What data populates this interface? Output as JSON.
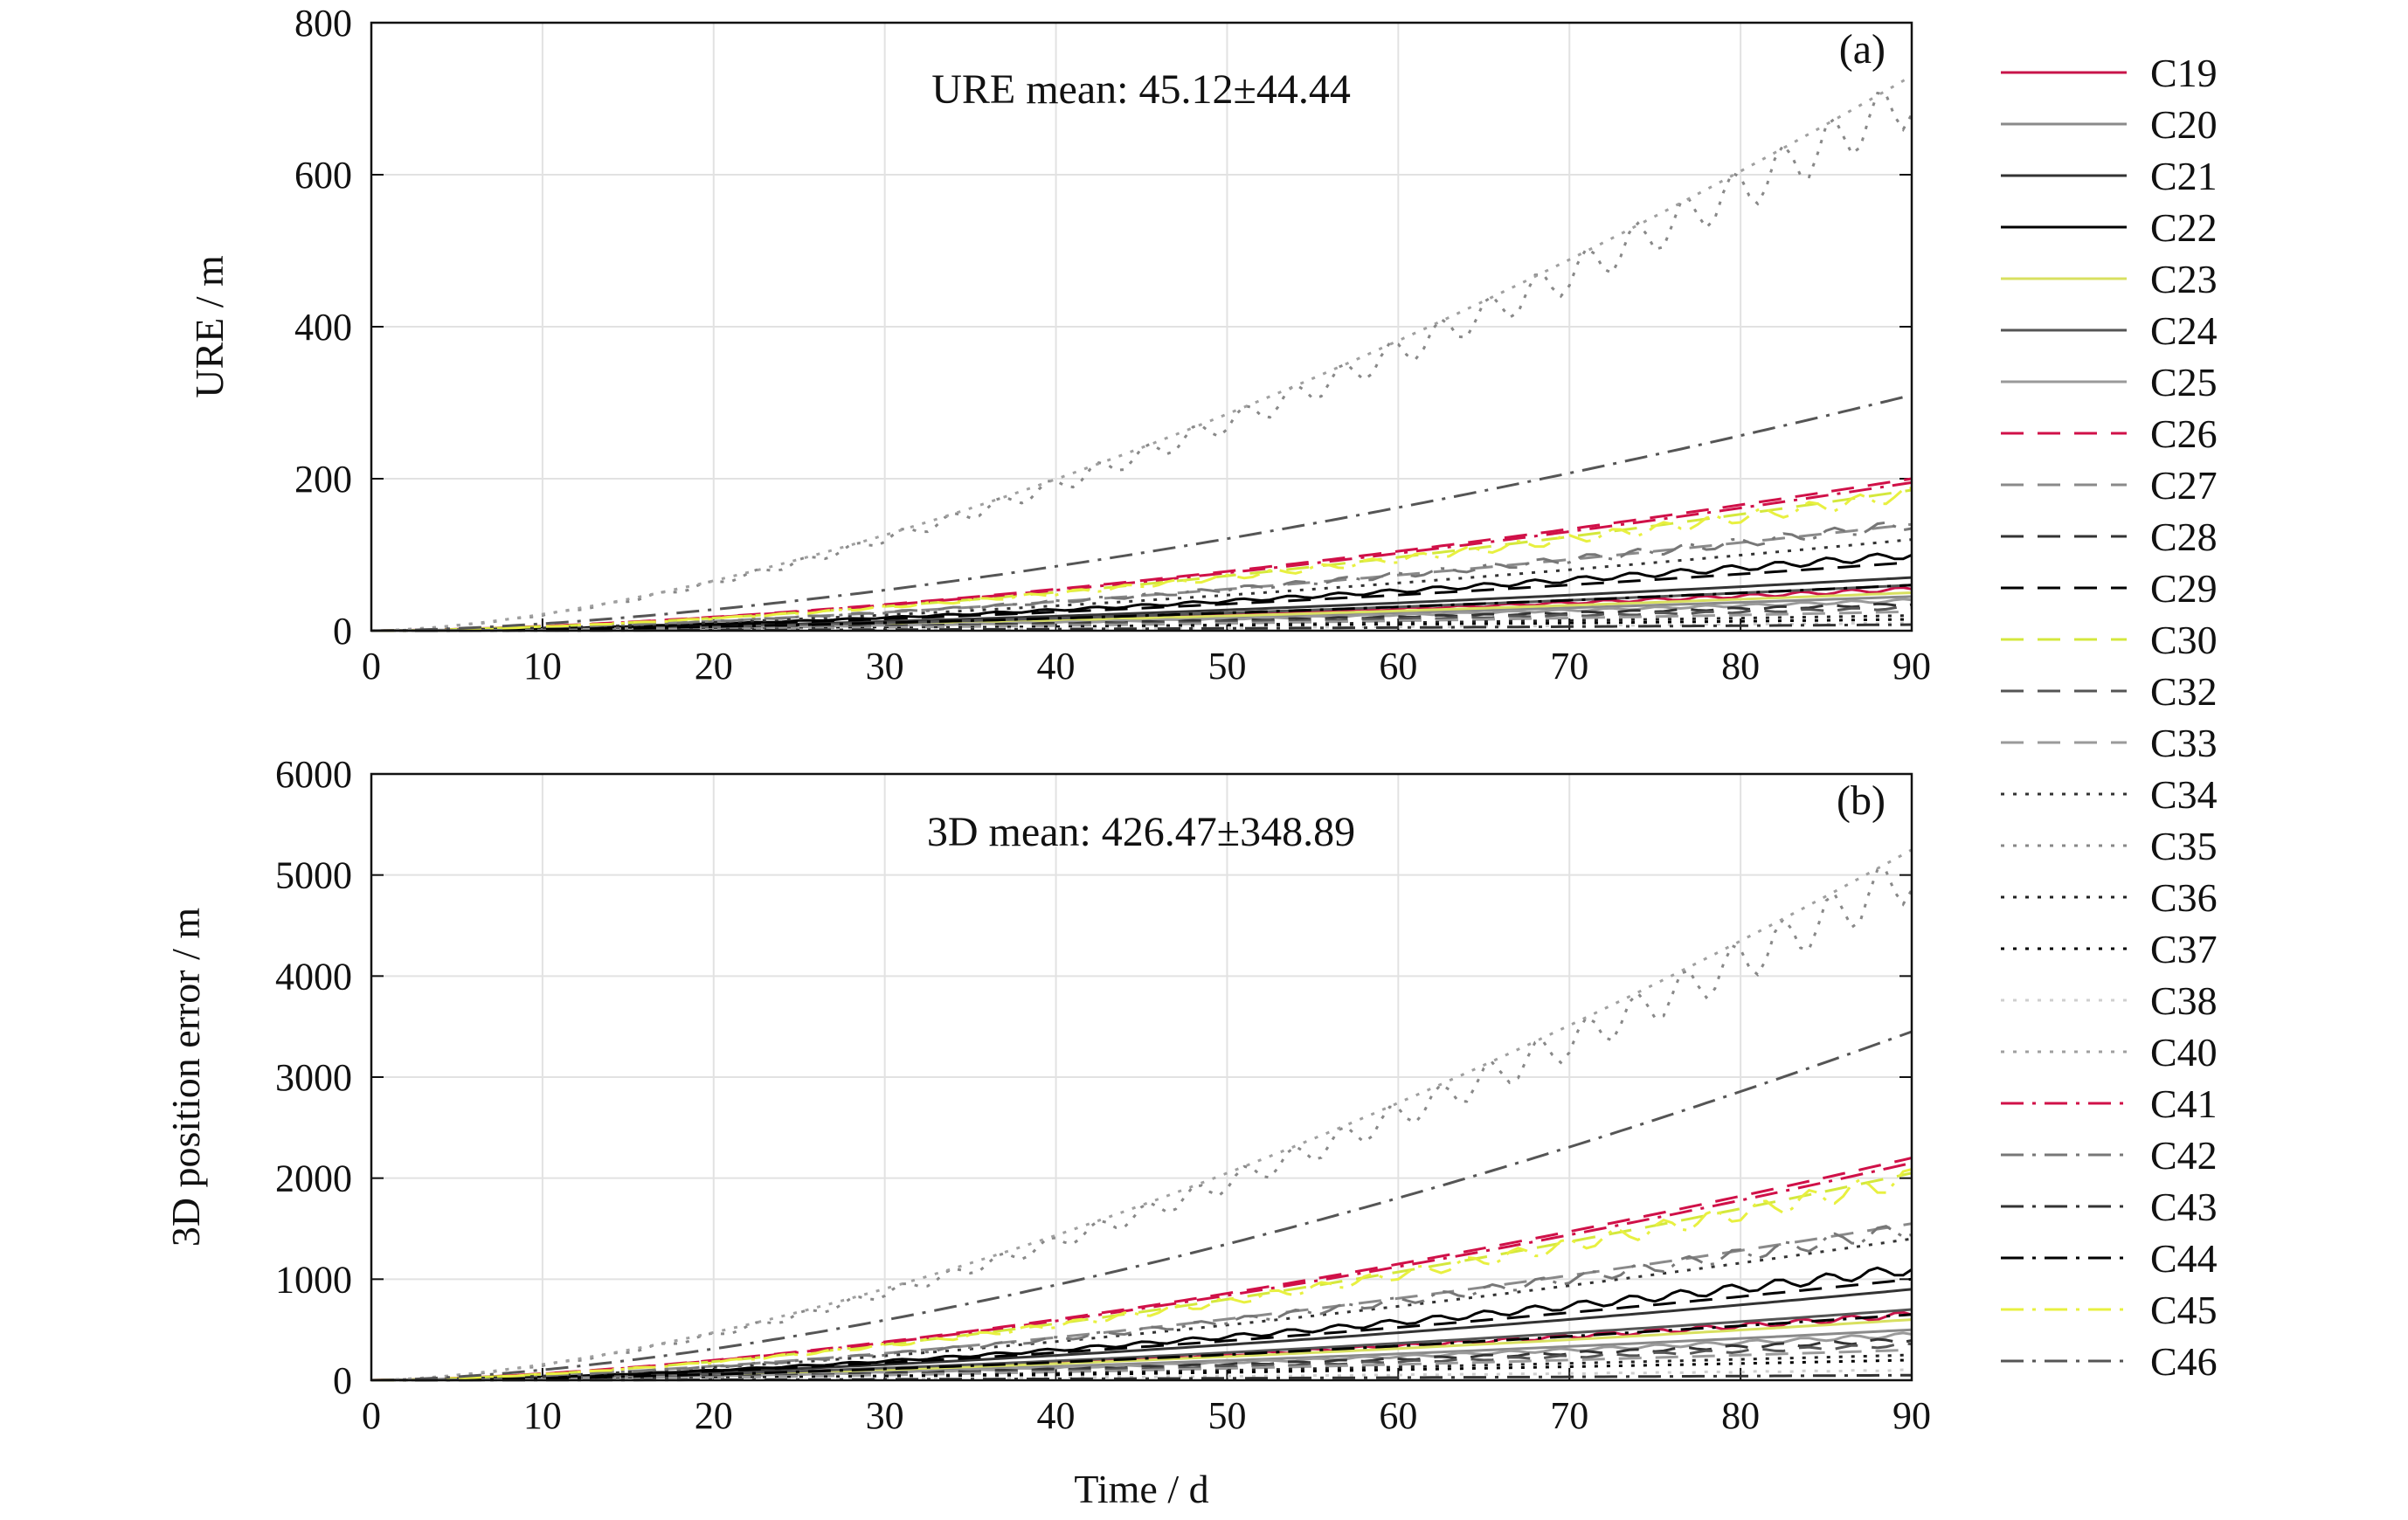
{
  "chart_data": [
    {
      "type": "line",
      "panel_label": "(a)",
      "annotation": "URE mean: 45.12±44.44",
      "xlabel": "",
      "ylabel": "URE / m",
      "xlim": [
        0,
        90
      ],
      "ylim": [
        0,
        800
      ],
      "xticks": [
        0,
        10,
        20,
        30,
        40,
        50,
        60,
        70,
        80,
        90
      ],
      "yticks": [
        0,
        200,
        400,
        600,
        800
      ],
      "grid": true,
      "series_end_values_day90": {
        "C19": 55,
        "C20": 45,
        "C21": 70,
        "C22": 100,
        "C23": 50,
        "C24": 60,
        "C25": 40,
        "C26": 200,
        "C27": 140,
        "C28": 35,
        "C29": 90,
        "C30": 185,
        "C32": 30,
        "C33": 25,
        "C34": 120,
        "C35": 700,
        "C36": 20,
        "C37": 15,
        "C38": 10,
        "C40": 730,
        "C41": 195,
        "C42": 140,
        "C43": 8,
        "C44": 60,
        "C45": 180,
        "C46": 310
      }
    },
    {
      "type": "line",
      "panel_label": "(b)",
      "annotation": "3D mean: 426.47±348.89",
      "xlabel": "Time / d",
      "ylabel": "3D position error / m",
      "xlim": [
        0,
        90
      ],
      "ylim": [
        0,
        6000
      ],
      "xticks": [
        0,
        10,
        20,
        30,
        40,
        50,
        60,
        70,
        80,
        90
      ],
      "yticks": [
        0,
        1000,
        2000,
        3000,
        4000,
        5000,
        6000
      ],
      "grid": true,
      "series_end_values_day90": {
        "C19": 650,
        "C20": 500,
        "C21": 900,
        "C22": 1100,
        "C23": 600,
        "C24": 700,
        "C25": 450,
        "C26": 2200,
        "C27": 1550,
        "C28": 400,
        "C29": 1000,
        "C30": 2050,
        "C32": 350,
        "C33": 300,
        "C34": 1400,
        "C35": 5000,
        "C36": 250,
        "C37": 200,
        "C38": 100,
        "C40": 5250,
        "C41": 2150,
        "C42": 1500,
        "C43": 50,
        "C44": 650,
        "C45": 2000,
        "C46": 3450
      }
    }
  ],
  "legend": {
    "placement": "right",
    "items": [
      {
        "name": "C19",
        "color": "#c8144a",
        "style": "solid"
      },
      {
        "name": "C20",
        "color": "#8a8a8a",
        "style": "solid"
      },
      {
        "name": "C21",
        "color": "#333333",
        "style": "solid"
      },
      {
        "name": "C22",
        "color": "#000000",
        "style": "solid"
      },
      {
        "name": "C23",
        "color": "#d8e060",
        "style": "solid"
      },
      {
        "name": "C24",
        "color": "#555555",
        "style": "solid"
      },
      {
        "name": "C25",
        "color": "#9a9a9a",
        "style": "solid"
      },
      {
        "name": "C26",
        "color": "#d01048",
        "style": "dashed"
      },
      {
        "name": "C27",
        "color": "#8a8a8a",
        "style": "dashed"
      },
      {
        "name": "C28",
        "color": "#333333",
        "style": "dashed"
      },
      {
        "name": "C29",
        "color": "#000000",
        "style": "dashed"
      },
      {
        "name": "C30",
        "color": "#d4e83c",
        "style": "dashed"
      },
      {
        "name": "C32",
        "color": "#555555",
        "style": "dashed"
      },
      {
        "name": "C33",
        "color": "#9a9a9a",
        "style": "dashed"
      },
      {
        "name": "C34",
        "color": "#333333",
        "style": "dotted"
      },
      {
        "name": "C35",
        "color": "#888888",
        "style": "dotted"
      },
      {
        "name": "C36",
        "color": "#222222",
        "style": "dotted"
      },
      {
        "name": "C37",
        "color": "#000000",
        "style": "dotted"
      },
      {
        "name": "C38",
        "color": "#cfcfcf",
        "style": "dotted"
      },
      {
        "name": "C40",
        "color": "#a0a0a0",
        "style": "dotted"
      },
      {
        "name": "C41",
        "color": "#d01048",
        "style": "dashdot"
      },
      {
        "name": "C42",
        "color": "#777777",
        "style": "dashdot"
      },
      {
        "name": "C43",
        "color": "#333333",
        "style": "dashdot"
      },
      {
        "name": "C44",
        "color": "#000000",
        "style": "dashdot"
      },
      {
        "name": "C45",
        "color": "#e8f040",
        "style": "dashdot"
      },
      {
        "name": "C46",
        "color": "#555555",
        "style": "dashdot"
      }
    ]
  }
}
